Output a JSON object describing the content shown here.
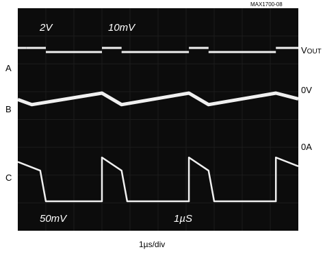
{
  "figure_id": "MAX1700-08",
  "chart_data": {
    "type": "line",
    "xlabel": "1µs/div",
    "x_unit": "µs",
    "xlim": [
      0,
      10
    ],
    "screen_text": {
      "top_left": "2V",
      "top_center": "10mV",
      "bottom_left": "50mV",
      "bottom_center": "1µS"
    },
    "trace_labels": [
      "A",
      "B",
      "C"
    ],
    "reference_labels": {
      "vout_base": "V",
      "vout_sub": "OUT",
      "zero_volt": "0V",
      "zero_amp": "0A"
    },
    "colors": {
      "screen": "#0c0c0c",
      "trace": "#f0f0f0"
    },
    "series": [
      {
        "trace": "A",
        "x": [
          0,
          0.3,
          0.3,
          1.0,
          1.0,
          3.0,
          3.0,
          3.7,
          3.7,
          6.1,
          6.1,
          6.8,
          6.8,
          9.2,
          9.2,
          10.0
        ],
        "y": [
          1,
          1,
          1,
          1,
          0,
          0,
          1,
          1,
          0,
          0,
          1,
          1,
          0,
          0,
          1,
          1
        ]
      },
      {
        "trace": "A-low-segments",
        "x": [
          1.0,
          3.0,
          3.7,
          6.1,
          6.8,
          9.2
        ],
        "y": [
          0,
          0,
          0,
          0,
          0,
          0
        ]
      },
      {
        "trace": "B",
        "x": [
          0,
          0.5,
          3.0,
          3.7,
          6.1,
          6.8,
          9.2,
          10.0
        ],
        "y": [
          0.55,
          0.2,
          1.0,
          0.2,
          1.0,
          0.2,
          1.0,
          0.6
        ]
      },
      {
        "trace": "C",
        "x": [
          0,
          0.8,
          1.0,
          3.0,
          3.0,
          3.7,
          3.9,
          6.1,
          6.1,
          6.8,
          7.0,
          9.2,
          9.2,
          10.0
        ],
        "y": [
          0.9,
          0.7,
          0.0,
          0.0,
          1.0,
          0.7,
          0.0,
          0.0,
          1.0,
          0.7,
          0.0,
          0.0,
          1.0,
          0.8
        ]
      }
    ]
  }
}
